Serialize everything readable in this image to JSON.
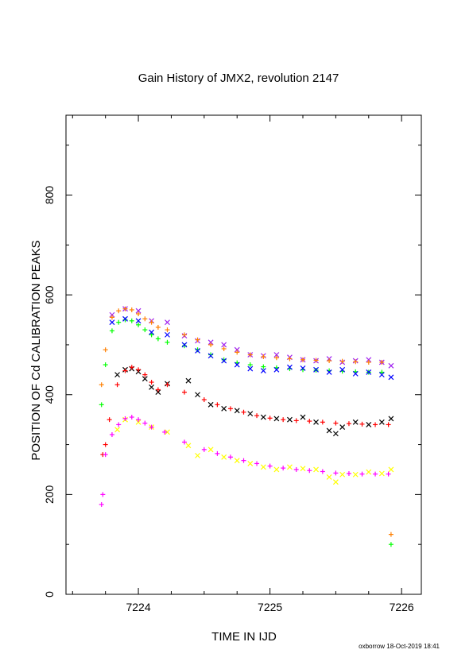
{
  "chart_data": {
    "type": "scatter",
    "title": "Gain History of JMX2, revolution 2147",
    "xlabel": "TIME IN IJD",
    "ylabel": "POSITION OF Cd CALIBRATION PEAKS",
    "xlim": [
      7223.45,
      7226.15
    ],
    "ylim": [
      0,
      960
    ],
    "x_ticks": [
      7224,
      7225,
      7226
    ],
    "y_ticks": [
      0,
      200,
      400,
      600,
      800
    ],
    "grid": false,
    "colors": {
      "black": "#000000",
      "red": "#ff0000",
      "green": "#00ff00",
      "blue": "#0000ff",
      "purple": "#a020f0",
      "orange": "#ff7f00",
      "yellow": "#ffff00",
      "magenta": "#ff00ff"
    },
    "series": [
      {
        "color": "black",
        "marker": "x",
        "points": [
          [
            7223.84,
            440
          ],
          [
            7223.9,
            450
          ],
          [
            7223.95,
            452
          ],
          [
            7224.0,
            446
          ],
          [
            7224.05,
            432
          ],
          [
            7224.1,
            415
          ],
          [
            7224.15,
            405
          ],
          [
            7224.22,
            422
          ],
          [
            7224.38,
            428
          ],
          [
            7224.45,
            400
          ],
          [
            7224.55,
            380
          ],
          [
            7224.65,
            372
          ],
          [
            7224.75,
            368
          ],
          [
            7224.85,
            362
          ],
          [
            7224.95,
            355
          ],
          [
            7225.05,
            352
          ],
          [
            7225.15,
            350
          ],
          [
            7225.25,
            355
          ],
          [
            7225.35,
            345
          ],
          [
            7225.45,
            328
          ],
          [
            7225.5,
            322
          ],
          [
            7225.55,
            335
          ],
          [
            7225.65,
            345
          ],
          [
            7225.75,
            340
          ],
          [
            7225.85,
            345
          ],
          [
            7225.92,
            352
          ]
        ]
      },
      {
        "color": "red",
        "marker": "+",
        "points": [
          [
            7223.73,
            280
          ],
          [
            7223.75,
            300
          ],
          [
            7223.78,
            350
          ],
          [
            7223.84,
            420
          ],
          [
            7223.9,
            448
          ],
          [
            7223.95,
            455
          ],
          [
            7224.0,
            450
          ],
          [
            7224.05,
            440
          ],
          [
            7224.1,
            425
          ],
          [
            7224.15,
            410
          ],
          [
            7224.22,
            420
          ],
          [
            7224.35,
            405
          ],
          [
            7224.5,
            390
          ],
          [
            7224.6,
            380
          ],
          [
            7224.7,
            372
          ],
          [
            7224.8,
            365
          ],
          [
            7224.9,
            358
          ],
          [
            7225.0,
            353
          ],
          [
            7225.1,
            350
          ],
          [
            7225.2,
            348
          ],
          [
            7225.3,
            347
          ],
          [
            7225.4,
            345
          ],
          [
            7225.5,
            343
          ],
          [
            7225.6,
            342
          ],
          [
            7225.7,
            341
          ],
          [
            7225.8,
            340
          ],
          [
            7225.9,
            340
          ]
        ]
      },
      {
        "color": "green",
        "marker": "+",
        "points": [
          [
            7223.72,
            380
          ],
          [
            7223.75,
            460
          ],
          [
            7223.8,
            528
          ],
          [
            7223.85,
            545
          ],
          [
            7223.9,
            550
          ],
          [
            7223.95,
            548
          ],
          [
            7224.0,
            540
          ],
          [
            7224.05,
            530
          ],
          [
            7224.1,
            520
          ],
          [
            7224.15,
            512
          ],
          [
            7224.22,
            505
          ],
          [
            7224.35,
            498
          ],
          [
            7224.45,
            490
          ],
          [
            7224.55,
            480
          ],
          [
            7224.65,
            470
          ],
          [
            7224.75,
            464
          ],
          [
            7224.85,
            460
          ],
          [
            7224.95,
            456
          ],
          [
            7225.05,
            454
          ],
          [
            7225.15,
            452
          ],
          [
            7225.25,
            450
          ],
          [
            7225.35,
            449
          ],
          [
            7225.45,
            448
          ],
          [
            7225.55,
            447
          ],
          [
            7225.65,
            446
          ],
          [
            7225.75,
            445
          ],
          [
            7225.85,
            445
          ],
          [
            7225.92,
            100
          ]
        ]
      },
      {
        "color": "blue",
        "marker": "x",
        "points": [
          [
            7223.8,
            545
          ],
          [
            7223.9,
            552
          ],
          [
            7224.0,
            548
          ],
          [
            7224.1,
            525
          ],
          [
            7224.22,
            520
          ],
          [
            7224.35,
            500
          ],
          [
            7224.45,
            488
          ],
          [
            7224.55,
            478
          ],
          [
            7224.65,
            468
          ],
          [
            7224.75,
            460
          ],
          [
            7224.85,
            452
          ],
          [
            7224.95,
            448
          ],
          [
            7225.05,
            450
          ],
          [
            7225.15,
            455
          ],
          [
            7225.25,
            453
          ],
          [
            7225.35,
            450
          ],
          [
            7225.45,
            445
          ],
          [
            7225.55,
            450
          ],
          [
            7225.65,
            442
          ],
          [
            7225.75,
            445
          ],
          [
            7225.85,
            440
          ],
          [
            7225.92,
            435
          ]
        ]
      },
      {
        "color": "purple",
        "marker": "x",
        "points": [
          [
            7223.8,
            560
          ],
          [
            7223.9,
            572
          ],
          [
            7224.0,
            568
          ],
          [
            7224.1,
            548
          ],
          [
            7224.22,
            545
          ],
          [
            7224.35,
            518
          ],
          [
            7224.45,
            508
          ],
          [
            7224.55,
            505
          ],
          [
            7224.65,
            500
          ],
          [
            7224.75,
            490
          ],
          [
            7224.85,
            480
          ],
          [
            7224.95,
            478
          ],
          [
            7225.05,
            480
          ],
          [
            7225.15,
            475
          ],
          [
            7225.25,
            470
          ],
          [
            7225.35,
            468
          ],
          [
            7225.45,
            472
          ],
          [
            7225.55,
            465
          ],
          [
            7225.65,
            468
          ],
          [
            7225.75,
            470
          ],
          [
            7225.85,
            465
          ],
          [
            7225.92,
            458
          ]
        ]
      },
      {
        "color": "orange",
        "marker": "+",
        "points": [
          [
            7223.72,
            420
          ],
          [
            7223.75,
            490
          ],
          [
            7223.8,
            555
          ],
          [
            7223.85,
            568
          ],
          [
            7223.9,
            572
          ],
          [
            7223.95,
            570
          ],
          [
            7224.0,
            562
          ],
          [
            7224.05,
            552
          ],
          [
            7224.1,
            545
          ],
          [
            7224.15,
            535
          ],
          [
            7224.22,
            530
          ],
          [
            7224.35,
            520
          ],
          [
            7224.45,
            510
          ],
          [
            7224.55,
            500
          ],
          [
            7224.65,
            492
          ],
          [
            7224.75,
            485
          ],
          [
            7224.85,
            480
          ],
          [
            7224.95,
            476
          ],
          [
            7225.05,
            474
          ],
          [
            7225.15,
            472
          ],
          [
            7225.25,
            470
          ],
          [
            7225.35,
            469
          ],
          [
            7225.45,
            468
          ],
          [
            7225.55,
            467
          ],
          [
            7225.65,
            466
          ],
          [
            7225.75,
            465
          ],
          [
            7225.85,
            465
          ],
          [
            7225.92,
            120
          ]
        ]
      },
      {
        "color": "yellow",
        "marker": "x",
        "points": [
          [
            7223.84,
            330
          ],
          [
            7223.9,
            350
          ],
          [
            7224.0,
            345
          ],
          [
            7224.1,
            335
          ],
          [
            7224.22,
            325
          ],
          [
            7224.38,
            298
          ],
          [
            7224.45,
            278
          ],
          [
            7224.55,
            290
          ],
          [
            7224.65,
            275
          ],
          [
            7224.75,
            268
          ],
          [
            7224.85,
            262
          ],
          [
            7224.95,
            255
          ],
          [
            7225.05,
            250
          ],
          [
            7225.15,
            255
          ],
          [
            7225.25,
            252
          ],
          [
            7225.35,
            250
          ],
          [
            7225.45,
            235
          ],
          [
            7225.5,
            225
          ],
          [
            7225.55,
            240
          ],
          [
            7225.65,
            240
          ],
          [
            7225.75,
            245
          ],
          [
            7225.85,
            242
          ],
          [
            7225.92,
            250
          ]
        ]
      },
      {
        "color": "magenta",
        "marker": "+",
        "points": [
          [
            7223.72,
            180
          ],
          [
            7223.73,
            200
          ],
          [
            7223.75,
            280
          ],
          [
            7223.8,
            320
          ],
          [
            7223.85,
            340
          ],
          [
            7223.9,
            352
          ],
          [
            7223.95,
            355
          ],
          [
            7224.0,
            350
          ],
          [
            7224.05,
            343
          ],
          [
            7224.1,
            335
          ],
          [
            7224.2,
            325
          ],
          [
            7224.35,
            305
          ],
          [
            7224.5,
            290
          ],
          [
            7224.6,
            282
          ],
          [
            7224.7,
            275
          ],
          [
            7224.8,
            268
          ],
          [
            7224.9,
            262
          ],
          [
            7225.0,
            257
          ],
          [
            7225.1,
            253
          ],
          [
            7225.2,
            250
          ],
          [
            7225.3,
            248
          ],
          [
            7225.4,
            246
          ],
          [
            7225.5,
            243
          ],
          [
            7225.6,
            242
          ],
          [
            7225.7,
            241
          ],
          [
            7225.8,
            241
          ],
          [
            7225.9,
            241
          ]
        ]
      }
    ]
  },
  "footer": "oxborrow 18-Oct-2019 18:41"
}
